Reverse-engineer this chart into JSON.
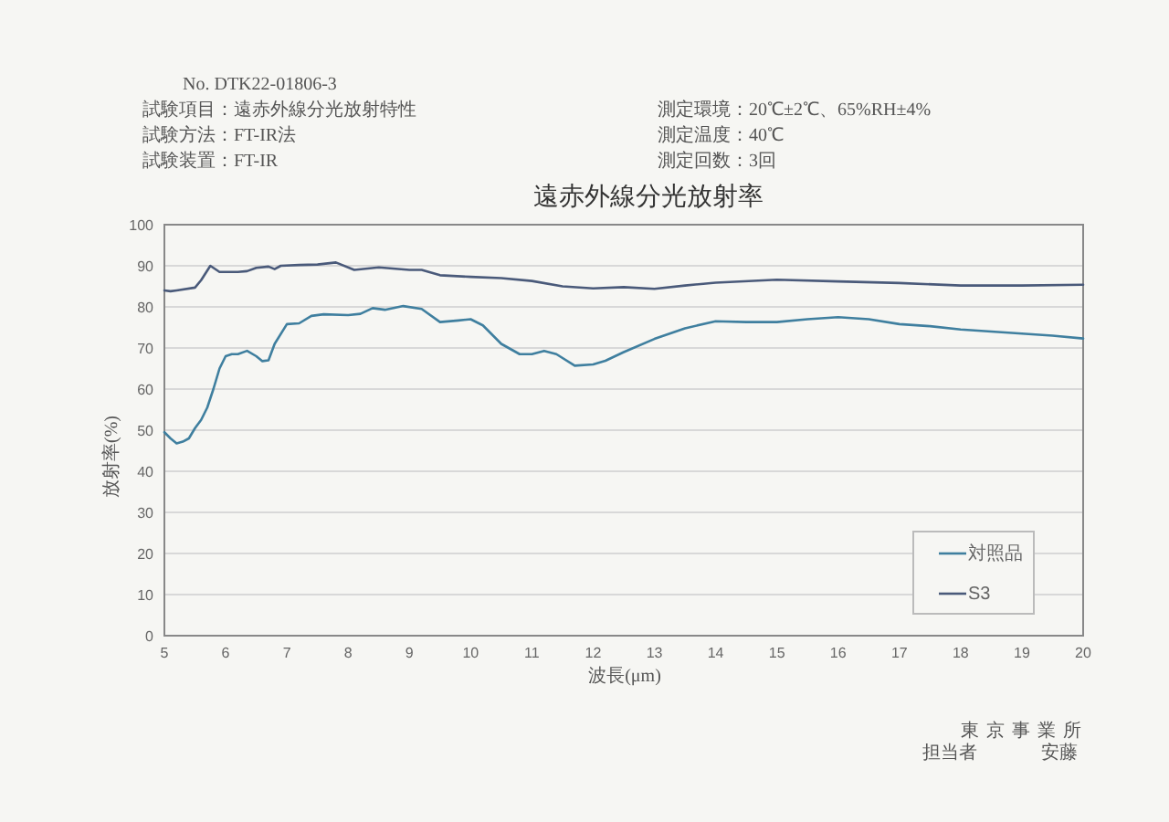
{
  "chart_data": {
    "type": "line",
    "title": "遠赤外線分光放射率",
    "xlabel": "波長(μm)",
    "ylabel": "放射率(%)",
    "annotations": [
      "No. DTK22-01806-3",
      "試験項目：遠赤外線分光放射特性",
      "試験方法：FT-IR法",
      "試験装置：FT-IR",
      "測定環境：20℃±2℃、65%RH±4%",
      "測定温度：40℃",
      "測定回数：3回",
      "東京事業所",
      "担当者",
      "安藤"
    ],
    "xlim": [
      5,
      20
    ],
    "ylim": [
      0,
      100
    ],
    "xticks": [
      5,
      6,
      7,
      8,
      9,
      10,
      11,
      12,
      13,
      14,
      15,
      16,
      17,
      18,
      19,
      20
    ],
    "yticks": [
      0,
      10,
      20,
      30,
      40,
      50,
      60,
      70,
      80,
      90,
      100
    ],
    "grid": "y",
    "legend": "bottom right",
    "marker": "none",
    "line_style": "solid",
    "series": [
      {
        "name": "対照品",
        "color": "#3f7f9f",
        "x": [
          5.0,
          5.1,
          5.2,
          5.3,
          5.4,
          5.5,
          5.6,
          5.7,
          5.8,
          5.9,
          6.0,
          6.1,
          6.2,
          6.35,
          6.5,
          6.6,
          6.7,
          6.8,
          7.0,
          7.2,
          7.4,
          7.6,
          8.0,
          8.2,
          8.4,
          8.6,
          8.9,
          9.2,
          9.5,
          9.8,
          10.0,
          10.2,
          10.5,
          10.8,
          11.0,
          11.2,
          11.4,
          11.7,
          12.0,
          12.2,
          12.5,
          13.0,
          13.5,
          14.0,
          14.5,
          15.0,
          15.5,
          16.0,
          16.5,
          17.0,
          17.5,
          18.0,
          18.5,
          19.0,
          19.5,
          20.0
        ],
        "values": [
          49.5,
          48,
          46.8,
          47.2,
          48,
          50.5,
          52.5,
          55.5,
          60,
          65,
          68,
          68.5,
          68.5,
          69.3,
          68,
          66.8,
          67,
          71,
          75.8,
          76,
          77.8,
          78.2,
          78,
          78.3,
          79.7,
          79.3,
          80.2,
          79.5,
          76.3,
          76.7,
          77,
          75.5,
          71,
          68.5,
          68.5,
          69.3,
          68.5,
          65.7,
          66,
          66.9,
          69,
          72.2,
          74.8,
          76.5,
          76.3,
          76.3,
          77,
          77.5,
          77,
          75.8,
          75.3,
          74.5,
          74,
          73.5,
          73,
          72.3
        ]
      },
      {
        "name": "S3",
        "color": "#4a5a7a",
        "x": [
          5.0,
          5.1,
          5.2,
          5.5,
          5.6,
          5.75,
          5.9,
          6.2,
          6.35,
          6.5,
          6.7,
          6.8,
          6.9,
          7.2,
          7.5,
          7.8,
          8.1,
          8.5,
          9.0,
          9.2,
          9.5,
          10.0,
          10.5,
          11.0,
          11.5,
          12.0,
          12.5,
          13.0,
          13.5,
          14.0,
          15.0,
          16.0,
          17.0,
          18.0,
          19.0,
          20.0
        ],
        "values": [
          84,
          83.8,
          84,
          84.7,
          86.5,
          90,
          88.5,
          88.5,
          88.7,
          89.5,
          89.8,
          89.2,
          90,
          90.2,
          90.3,
          90.8,
          89,
          89.6,
          89,
          89,
          87.7,
          87.3,
          87,
          86.3,
          85,
          84.5,
          84.8,
          84.4,
          85.2,
          85.9,
          86.6,
          86.2,
          85.8,
          85.2,
          85.2,
          85.4
        ]
      }
    ]
  }
}
